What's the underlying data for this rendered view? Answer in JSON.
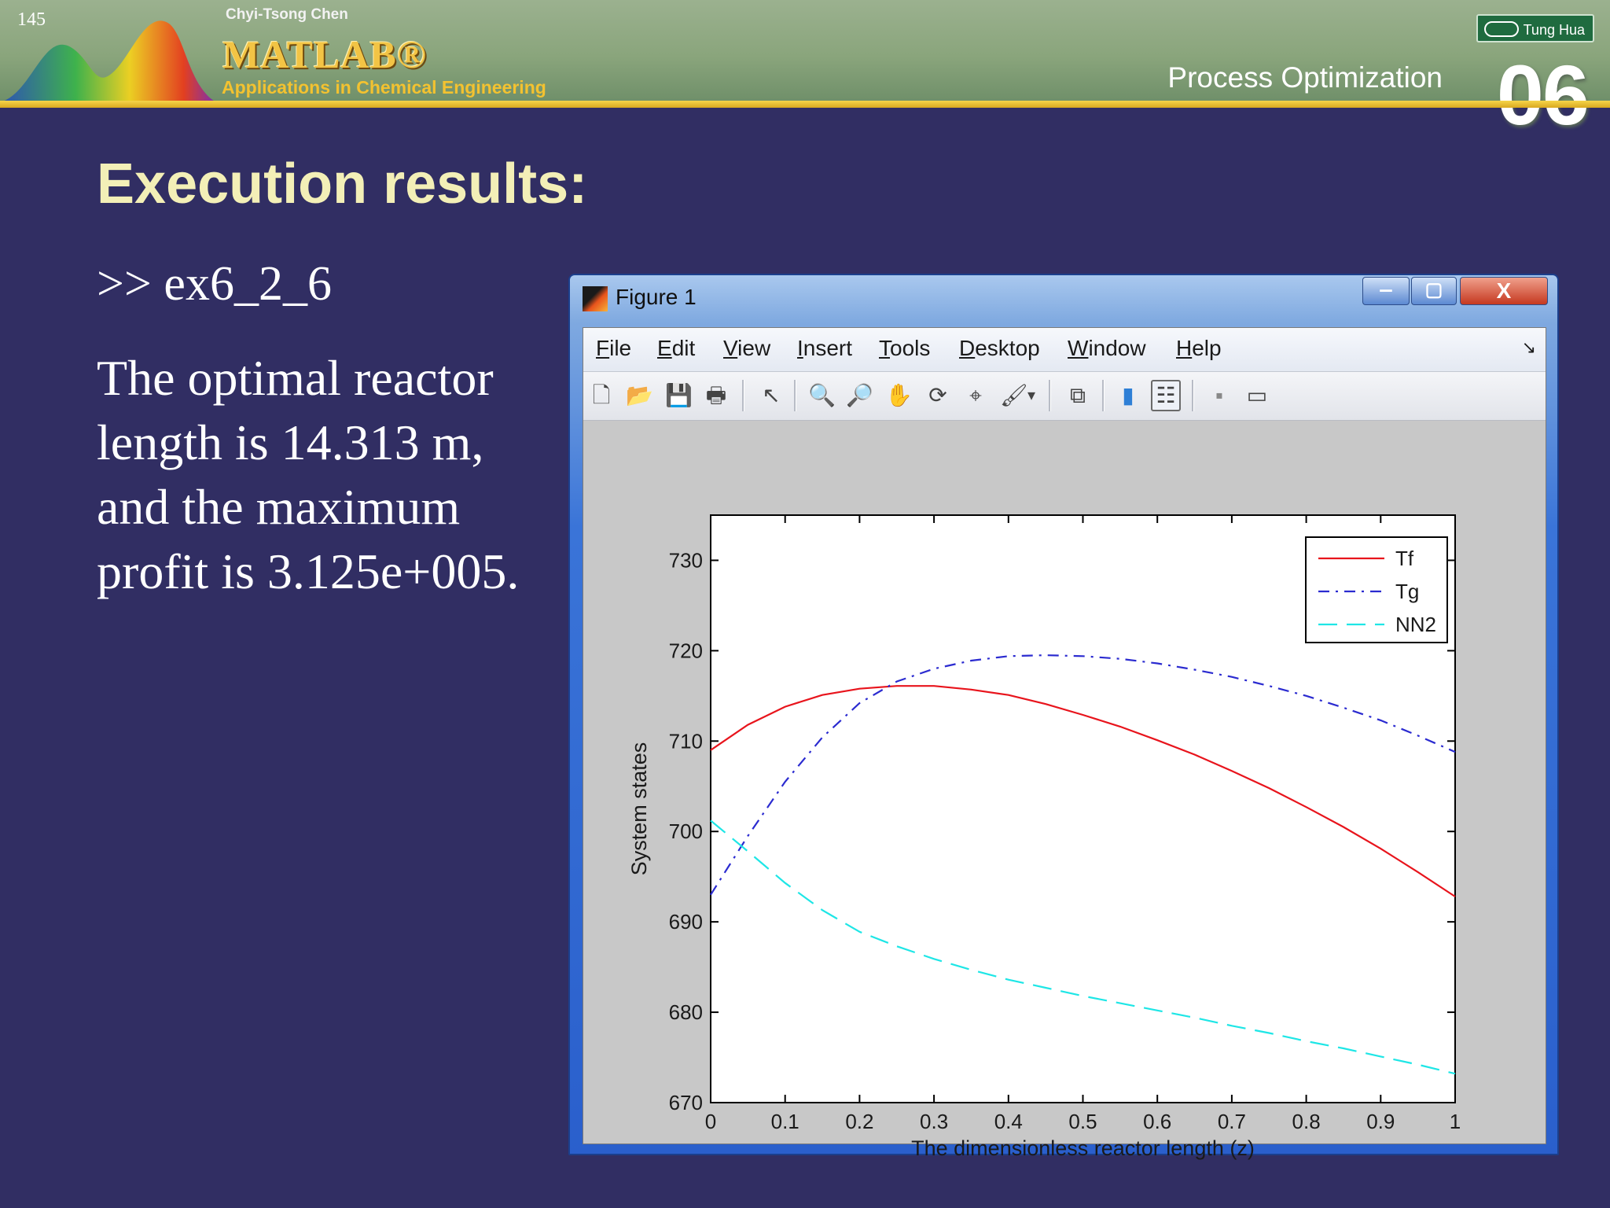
{
  "slide": {
    "number": "145",
    "author": "Chyi-Tsong Chen",
    "logo_text": "MATLAB®",
    "subtitle": "Applications in Chemical Engineering",
    "section_title": "Process Optimization",
    "chapter_number": "06",
    "publisher": "Tung Hua"
  },
  "content": {
    "heading": "Execution results:",
    "command": ">> ex6_2_6",
    "result": "The optimal reactor length is 14.313 m, and the maximum profit is 3.125e+005."
  },
  "window": {
    "title": "Figure 1",
    "controls": {
      "minimize": "‒",
      "maximize": "▢",
      "close": "X"
    },
    "menu": [
      "File",
      "Edit",
      "View",
      "Insert",
      "Tools",
      "Desktop",
      "Window",
      "Help"
    ],
    "dock_glyph": "↘",
    "toolbar": [
      {
        "name": "new-figure-icon",
        "glyph": "🗋"
      },
      {
        "name": "open-file-icon",
        "glyph": "📂"
      },
      {
        "name": "save-icon",
        "glyph": "💾"
      },
      {
        "name": "print-icon",
        "glyph": "🖶"
      },
      {
        "name": "edit-plot-arrow-icon",
        "glyph": "↖"
      },
      {
        "name": "zoom-in-icon",
        "glyph": "🔍"
      },
      {
        "name": "zoom-out-icon",
        "glyph": "🔎"
      },
      {
        "name": "pan-hand-icon",
        "glyph": "✋"
      },
      {
        "name": "rotate-3d-icon",
        "glyph": "⟳"
      },
      {
        "name": "data-cursor-icon",
        "glyph": "⌖"
      },
      {
        "name": "brush-icon",
        "glyph": "🖌"
      },
      {
        "name": "brush-dropdown-icon",
        "glyph": "▾"
      },
      {
        "name": "link-plot-icon",
        "glyph": "⧉"
      },
      {
        "name": "colorbar-icon",
        "glyph": "▮"
      },
      {
        "name": "legend-icon",
        "glyph": "☷"
      },
      {
        "name": "hide-plot-tools-icon",
        "glyph": "▪"
      },
      {
        "name": "show-plot-tools-icon",
        "glyph": "▭"
      }
    ]
  },
  "chart_data": {
    "type": "line",
    "xlabel": "The dimensionless reactor length (z)",
    "ylabel": "System states",
    "xlim": [
      0,
      1
    ],
    "ylim": [
      670,
      735
    ],
    "xticks": [
      "0",
      "0.1",
      "0.2",
      "0.3",
      "0.4",
      "0.5",
      "0.6",
      "0.7",
      "0.8",
      "0.9",
      "1"
    ],
    "yticks": [
      "670",
      "680",
      "690",
      "700",
      "710",
      "720",
      "730"
    ],
    "legend_position": "top-right",
    "grid": false,
    "x": [
      0,
      0.05,
      0.1,
      0.15,
      0.2,
      0.25,
      0.3,
      0.35,
      0.4,
      0.45,
      0.5,
      0.55,
      0.6,
      0.65,
      0.7,
      0.75,
      0.8,
      0.85,
      0.9,
      0.95,
      1
    ],
    "series": [
      {
        "name": "Tf",
        "color": "#e8141c",
        "style": "solid",
        "values": [
          709.0,
          711.8,
          713.8,
          715.1,
          715.8,
          716.1,
          716.1,
          715.7,
          715.1,
          714.1,
          712.9,
          711.6,
          710.1,
          708.5,
          706.7,
          704.8,
          702.7,
          700.5,
          698.1,
          695.5,
          692.8
        ]
      },
      {
        "name": "Tg",
        "color": "#2b2bd0",
        "style": "dashdot",
        "values": [
          693.0,
          699.5,
          705.5,
          710.4,
          714.2,
          716.6,
          718.0,
          718.9,
          719.4,
          719.5,
          719.4,
          719.1,
          718.6,
          717.9,
          717.1,
          716.1,
          715.0,
          713.7,
          712.3,
          710.6,
          708.8
        ]
      },
      {
        "name": "NN2",
        "color": "#1ee6e6",
        "style": "dashed",
        "values": [
          701.2,
          697.8,
          694.3,
          691.3,
          688.9,
          687.3,
          685.9,
          684.7,
          683.6,
          682.7,
          681.8,
          681.0,
          680.2,
          679.4,
          678.5,
          677.7,
          676.8,
          676.0,
          675.1,
          674.2,
          673.2
        ]
      }
    ]
  }
}
